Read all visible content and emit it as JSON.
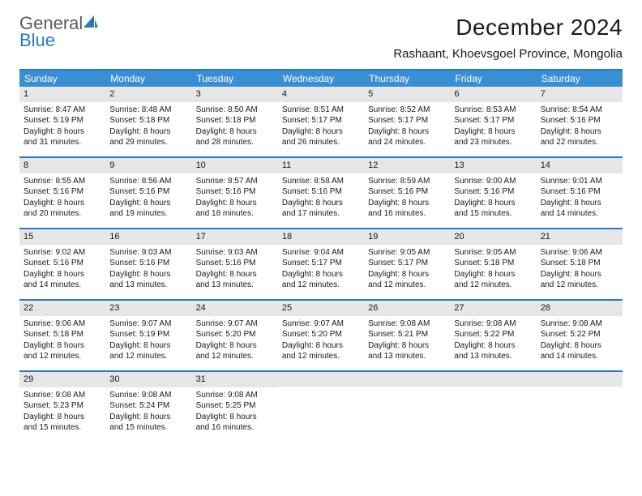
{
  "logo": {
    "word1": "General",
    "word2": "Blue"
  },
  "title": "December 2024",
  "location": "Rashaant, Khoevsgoel Province, Mongolia",
  "colors": {
    "header_bg": "#3a8fd4",
    "accent_border": "#2a79bf",
    "daynum_bg": "#e6e6e6",
    "text": "#1a1a1a",
    "header_text": "#ffffff",
    "logo_gray": "#5a5a5a",
    "logo_blue": "#2a79bf",
    "page_bg": "#ffffff"
  },
  "weekdays": [
    "Sunday",
    "Monday",
    "Tuesday",
    "Wednesday",
    "Thursday",
    "Friday",
    "Saturday"
  ],
  "weeks": [
    [
      {
        "n": "1",
        "sr": "Sunrise: 8:47 AM",
        "ss": "Sunset: 5:19 PM",
        "d1": "Daylight: 8 hours",
        "d2": "and 31 minutes."
      },
      {
        "n": "2",
        "sr": "Sunrise: 8:48 AM",
        "ss": "Sunset: 5:18 PM",
        "d1": "Daylight: 8 hours",
        "d2": "and 29 minutes."
      },
      {
        "n": "3",
        "sr": "Sunrise: 8:50 AM",
        "ss": "Sunset: 5:18 PM",
        "d1": "Daylight: 8 hours",
        "d2": "and 28 minutes."
      },
      {
        "n": "4",
        "sr": "Sunrise: 8:51 AM",
        "ss": "Sunset: 5:17 PM",
        "d1": "Daylight: 8 hours",
        "d2": "and 26 minutes."
      },
      {
        "n": "5",
        "sr": "Sunrise: 8:52 AM",
        "ss": "Sunset: 5:17 PM",
        "d1": "Daylight: 8 hours",
        "d2": "and 24 minutes."
      },
      {
        "n": "6",
        "sr": "Sunrise: 8:53 AM",
        "ss": "Sunset: 5:17 PM",
        "d1": "Daylight: 8 hours",
        "d2": "and 23 minutes."
      },
      {
        "n": "7",
        "sr": "Sunrise: 8:54 AM",
        "ss": "Sunset: 5:16 PM",
        "d1": "Daylight: 8 hours",
        "d2": "and 22 minutes."
      }
    ],
    [
      {
        "n": "8",
        "sr": "Sunrise: 8:55 AM",
        "ss": "Sunset: 5:16 PM",
        "d1": "Daylight: 8 hours",
        "d2": "and 20 minutes."
      },
      {
        "n": "9",
        "sr": "Sunrise: 8:56 AM",
        "ss": "Sunset: 5:16 PM",
        "d1": "Daylight: 8 hours",
        "d2": "and 19 minutes."
      },
      {
        "n": "10",
        "sr": "Sunrise: 8:57 AM",
        "ss": "Sunset: 5:16 PM",
        "d1": "Daylight: 8 hours",
        "d2": "and 18 minutes."
      },
      {
        "n": "11",
        "sr": "Sunrise: 8:58 AM",
        "ss": "Sunset: 5:16 PM",
        "d1": "Daylight: 8 hours",
        "d2": "and 17 minutes."
      },
      {
        "n": "12",
        "sr": "Sunrise: 8:59 AM",
        "ss": "Sunset: 5:16 PM",
        "d1": "Daylight: 8 hours",
        "d2": "and 16 minutes."
      },
      {
        "n": "13",
        "sr": "Sunrise: 9:00 AM",
        "ss": "Sunset: 5:16 PM",
        "d1": "Daylight: 8 hours",
        "d2": "and 15 minutes."
      },
      {
        "n": "14",
        "sr": "Sunrise: 9:01 AM",
        "ss": "Sunset: 5:16 PM",
        "d1": "Daylight: 8 hours",
        "d2": "and 14 minutes."
      }
    ],
    [
      {
        "n": "15",
        "sr": "Sunrise: 9:02 AM",
        "ss": "Sunset: 5:16 PM",
        "d1": "Daylight: 8 hours",
        "d2": "and 14 minutes."
      },
      {
        "n": "16",
        "sr": "Sunrise: 9:03 AM",
        "ss": "Sunset: 5:16 PM",
        "d1": "Daylight: 8 hours",
        "d2": "and 13 minutes."
      },
      {
        "n": "17",
        "sr": "Sunrise: 9:03 AM",
        "ss": "Sunset: 5:16 PM",
        "d1": "Daylight: 8 hours",
        "d2": "and 13 minutes."
      },
      {
        "n": "18",
        "sr": "Sunrise: 9:04 AM",
        "ss": "Sunset: 5:17 PM",
        "d1": "Daylight: 8 hours",
        "d2": "and 12 minutes."
      },
      {
        "n": "19",
        "sr": "Sunrise: 9:05 AM",
        "ss": "Sunset: 5:17 PM",
        "d1": "Daylight: 8 hours",
        "d2": "and 12 minutes."
      },
      {
        "n": "20",
        "sr": "Sunrise: 9:05 AM",
        "ss": "Sunset: 5:18 PM",
        "d1": "Daylight: 8 hours",
        "d2": "and 12 minutes."
      },
      {
        "n": "21",
        "sr": "Sunrise: 9:06 AM",
        "ss": "Sunset: 5:18 PM",
        "d1": "Daylight: 8 hours",
        "d2": "and 12 minutes."
      }
    ],
    [
      {
        "n": "22",
        "sr": "Sunrise: 9:06 AM",
        "ss": "Sunset: 5:18 PM",
        "d1": "Daylight: 8 hours",
        "d2": "and 12 minutes."
      },
      {
        "n": "23",
        "sr": "Sunrise: 9:07 AM",
        "ss": "Sunset: 5:19 PM",
        "d1": "Daylight: 8 hours",
        "d2": "and 12 minutes."
      },
      {
        "n": "24",
        "sr": "Sunrise: 9:07 AM",
        "ss": "Sunset: 5:20 PM",
        "d1": "Daylight: 8 hours",
        "d2": "and 12 minutes."
      },
      {
        "n": "25",
        "sr": "Sunrise: 9:07 AM",
        "ss": "Sunset: 5:20 PM",
        "d1": "Daylight: 8 hours",
        "d2": "and 12 minutes."
      },
      {
        "n": "26",
        "sr": "Sunrise: 9:08 AM",
        "ss": "Sunset: 5:21 PM",
        "d1": "Daylight: 8 hours",
        "d2": "and 13 minutes."
      },
      {
        "n": "27",
        "sr": "Sunrise: 9:08 AM",
        "ss": "Sunset: 5:22 PM",
        "d1": "Daylight: 8 hours",
        "d2": "and 13 minutes."
      },
      {
        "n": "28",
        "sr": "Sunrise: 9:08 AM",
        "ss": "Sunset: 5:22 PM",
        "d1": "Daylight: 8 hours",
        "d2": "and 14 minutes."
      }
    ],
    [
      {
        "n": "29",
        "sr": "Sunrise: 9:08 AM",
        "ss": "Sunset: 5:23 PM",
        "d1": "Daylight: 8 hours",
        "d2": "and 15 minutes."
      },
      {
        "n": "30",
        "sr": "Sunrise: 9:08 AM",
        "ss": "Sunset: 5:24 PM",
        "d1": "Daylight: 8 hours",
        "d2": "and 15 minutes."
      },
      {
        "n": "31",
        "sr": "Sunrise: 9:08 AM",
        "ss": "Sunset: 5:25 PM",
        "d1": "Daylight: 8 hours",
        "d2": "and 16 minutes."
      },
      null,
      null,
      null,
      null
    ]
  ]
}
